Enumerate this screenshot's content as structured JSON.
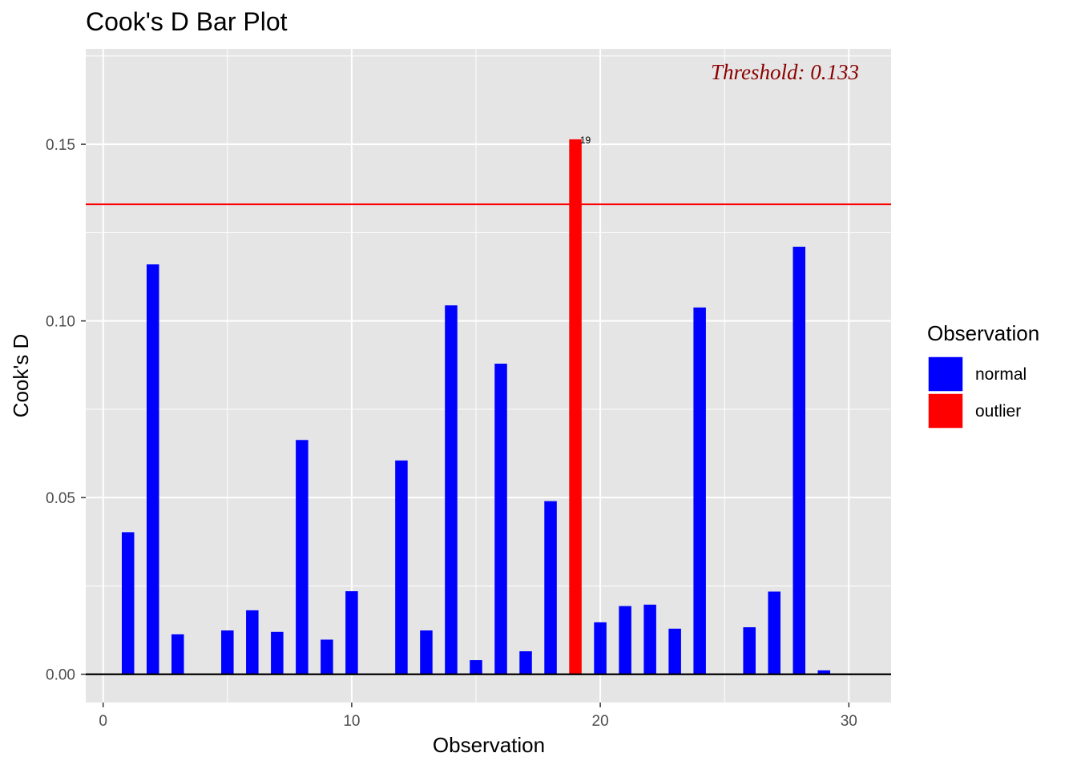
{
  "chart_data": {
    "type": "bar",
    "title": "Cook's D Bar Plot",
    "xlabel": "Observation",
    "ylabel": "Cook's D",
    "xlim": [
      -0.7,
      31.7
    ],
    "ylim": [
      -0.008,
      0.177
    ],
    "x_ticks": [
      0,
      10,
      20,
      30
    ],
    "x_tick_labels": [
      "0",
      "10",
      "20",
      "30"
    ],
    "y_ticks": [
      0,
      0.05,
      0.1,
      0.15
    ],
    "y_tick_labels": [
      "0.00",
      "0.05",
      "0.10",
      "0.15"
    ],
    "x": [
      1,
      2,
      3,
      4,
      5,
      6,
      7,
      8,
      9,
      10,
      11,
      12,
      13,
      14,
      15,
      16,
      17,
      18,
      19,
      20,
      21,
      22,
      23,
      24,
      25,
      26,
      27,
      28,
      29
    ],
    "values": [
      0.0402,
      0.116,
      0.0113,
      0.0,
      0.0124,
      0.0181,
      0.012,
      0.0663,
      0.0098,
      0.0235,
      0.0,
      0.0605,
      0.0124,
      0.1044,
      0.004,
      0.0879,
      0.0065,
      0.049,
      0.1514,
      0.0147,
      0.0193,
      0.0197,
      0.0129,
      0.1038,
      0.0,
      0.0133,
      0.0234,
      0.121,
      0.0011
    ],
    "groups": [
      "normal",
      "normal",
      "normal",
      "normal",
      "normal",
      "normal",
      "normal",
      "normal",
      "normal",
      "normal",
      "normal",
      "normal",
      "normal",
      "normal",
      "normal",
      "normal",
      "normal",
      "normal",
      "outlier",
      "normal",
      "normal",
      "normal",
      "normal",
      "normal",
      "normal",
      "normal",
      "normal",
      "normal",
      "normal"
    ],
    "bar_labels": [
      {
        "x": 19,
        "y": 0.1514,
        "text": "19"
      }
    ],
    "threshold": {
      "value": 0.133,
      "label": "Threshold: 0.133",
      "color": "#FF0000",
      "label_color": "#8B0000"
    },
    "legend": {
      "title": "Observation",
      "position": "right",
      "entries": [
        {
          "label": "normal",
          "color": "#0000FF"
        },
        {
          "label": "outlier",
          "color": "#FF0000"
        }
      ]
    },
    "grid": true,
    "panel_background": "#E5E5E5",
    "grid_color": "#FFFFFF"
  }
}
